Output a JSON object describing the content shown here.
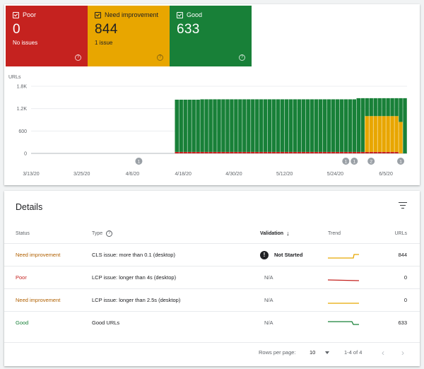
{
  "colors": {
    "poor": "#c5221f",
    "need": "#e8a600",
    "good": "#188038",
    "trend_need": "#e8a600",
    "trend_poor": "#c5221f",
    "trend_good": "#188038"
  },
  "tiles": [
    {
      "id": "poor",
      "label": "Poor",
      "value": "0",
      "sub": "No issues"
    },
    {
      "id": "need",
      "label": "Need improvement",
      "value": "844",
      "sub": "1 issue"
    },
    {
      "id": "good",
      "label": "Good",
      "value": "633",
      "sub": ""
    }
  ],
  "chart_data": {
    "type": "bar",
    "ylabel": "URLs",
    "yticks": [
      "1.8K",
      "1.2K",
      "600",
      "0"
    ],
    "ylim": [
      0,
      1800
    ],
    "xticks": [
      "3/13/20",
      "3/25/20",
      "4/6/20",
      "4/18/20",
      "4/30/20",
      "5/12/20",
      "5/24/20",
      "6/5/20"
    ],
    "x_start": "3/13/20",
    "x_end": "6/9/20",
    "series": [
      {
        "name": "Poor",
        "start_index": 34,
        "end_index": 86,
        "value": 40
      },
      {
        "name": "Need improvement",
        "values": [
          [
            77,
            0
          ],
          [
            78,
            0
          ],
          [
            79,
            960
          ],
          [
            80,
            960
          ],
          [
            81,
            960
          ],
          [
            82,
            960
          ],
          [
            83,
            960
          ],
          [
            84,
            960
          ],
          [
            85,
            960
          ],
          [
            86,
            960
          ],
          [
            87,
            844
          ]
        ]
      },
      {
        "name": "Good",
        "start_index": 34,
        "end_index": 87,
        "values_desc": "total around 1450 from 4/6 then 1480 late May"
      }
    ],
    "annotations": [
      {
        "x": "4/7/20",
        "label": "1"
      },
      {
        "x": "5/26/20",
        "label": "1"
      },
      {
        "x": "5/28/20",
        "label": "1"
      },
      {
        "x": "6/1/20",
        "label": "2"
      },
      {
        "x": "6/8/20",
        "label": "1"
      }
    ]
  },
  "details": {
    "title": "Details",
    "columns": {
      "status": "Status",
      "type": "Type",
      "validation": "Validation",
      "trend": "Trend",
      "urls": "URLs"
    },
    "rows": [
      {
        "status": "Need improvement",
        "status_class": "need",
        "type": "CLS issue: more than 0.1 (desktop)",
        "validation": "Not Started",
        "urls": "844"
      },
      {
        "status": "Poor",
        "status_class": "poor",
        "type": "LCP issue: longer than 4s (desktop)",
        "validation": "N/A",
        "urls": "0"
      },
      {
        "status": "Need improvement",
        "status_class": "need",
        "type": "LCP issue: longer than 2.5s (desktop)",
        "validation": "N/A",
        "urls": "0"
      },
      {
        "status": "Good",
        "status_class": "good",
        "type": "Good URLs",
        "validation": "N/A",
        "urls": "633"
      }
    ],
    "pagination": {
      "rows_per_page_label": "Rows per page:",
      "rows_per_page": "10",
      "range": "1-4 of 4"
    }
  }
}
